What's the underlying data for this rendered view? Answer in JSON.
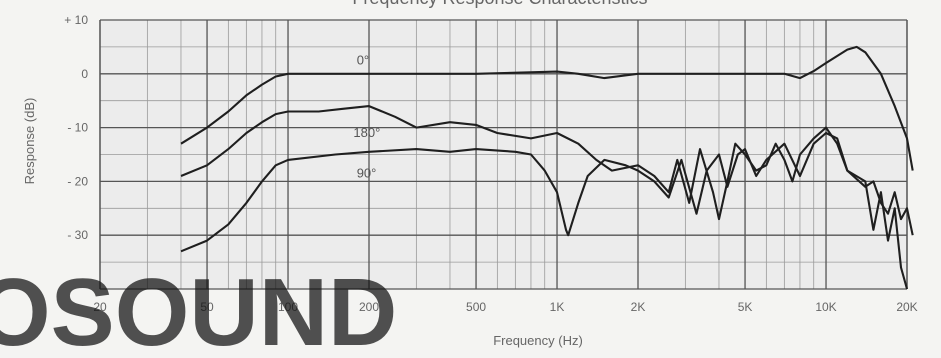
{
  "chart_data": {
    "type": "line",
    "title": "Frequency Response Characteristics",
    "xlabel": "Frequency (Hz)",
    "ylabel": "Response (dB)",
    "x_scale": "log",
    "xlim": [
      20,
      20000
    ],
    "ylim": [
      -40,
      10
    ],
    "grid": true,
    "x_ticks": [
      {
        "value": 20,
        "label": "20"
      },
      {
        "value": 50,
        "label": "50"
      },
      {
        "value": 100,
        "label": "100"
      },
      {
        "value": 200,
        "label": "200"
      },
      {
        "value": 500,
        "label": "500"
      },
      {
        "value": 1000,
        "label": "1K"
      },
      {
        "value": 2000,
        "label": "2K"
      },
      {
        "value": 5000,
        "label": "5K"
      },
      {
        "value": 10000,
        "label": "10K"
      },
      {
        "value": 20000,
        "label": "20K"
      }
    ],
    "y_ticks": [
      {
        "value": 10,
        "label": "+ 10"
      },
      {
        "value": 0,
        "label": "0"
      },
      {
        "value": -10,
        "label": "- 10"
      },
      {
        "value": -20,
        "label": "- 20"
      },
      {
        "value": -30,
        "label": "- 30"
      }
    ],
    "series": [
      {
        "name": "0°",
        "points": [
          [
            40,
            -13
          ],
          [
            50,
            -10
          ],
          [
            60,
            -7
          ],
          [
            70,
            -4
          ],
          [
            80,
            -2
          ],
          [
            90,
            -0.5
          ],
          [
            100,
            0
          ],
          [
            200,
            0
          ],
          [
            500,
            0
          ],
          [
            1000,
            0.4
          ],
          [
            1200,
            0
          ],
          [
            1500,
            -0.8
          ],
          [
            2000,
            0
          ],
          [
            5000,
            0
          ],
          [
            7000,
            0
          ],
          [
            8000,
            -0.8
          ],
          [
            9000,
            0.5
          ],
          [
            10000,
            2
          ],
          [
            12000,
            4.5
          ],
          [
            13000,
            5
          ],
          [
            14000,
            4
          ],
          [
            16000,
            0
          ],
          [
            18000,
            -6
          ],
          [
            20000,
            -12
          ],
          [
            21000,
            -18
          ]
        ],
        "label_at": [
          180,
          2.5
        ]
      },
      {
        "name": "180°",
        "points": [
          [
            40,
            -19
          ],
          [
            50,
            -17
          ],
          [
            60,
            -14
          ],
          [
            70,
            -11
          ],
          [
            80,
            -9
          ],
          [
            90,
            -7.5
          ],
          [
            100,
            -7
          ],
          [
            130,
            -7
          ],
          [
            160,
            -6.5
          ],
          [
            200,
            -6
          ],
          [
            250,
            -8
          ],
          [
            300,
            -10
          ],
          [
            400,
            -9
          ],
          [
            500,
            -9.5
          ],
          [
            600,
            -11
          ],
          [
            800,
            -12
          ],
          [
            1000,
            -11
          ],
          [
            1200,
            -13
          ],
          [
            1400,
            -16
          ],
          [
            1600,
            -18
          ],
          [
            2000,
            -17
          ],
          [
            2300,
            -19
          ],
          [
            2600,
            -22
          ],
          [
            2800,
            -16
          ],
          [
            3100,
            -24
          ],
          [
            3400,
            -14
          ],
          [
            3800,
            -22
          ],
          [
            4000,
            -27
          ],
          [
            4300,
            -20
          ],
          [
            4600,
            -13
          ],
          [
            5000,
            -15
          ],
          [
            5500,
            -18
          ],
          [
            6000,
            -17
          ],
          [
            6500,
            -13
          ],
          [
            7000,
            -16
          ],
          [
            7500,
            -20
          ],
          [
            8000,
            -15
          ],
          [
            9000,
            -12
          ],
          [
            10000,
            -10
          ],
          [
            11000,
            -13
          ],
          [
            12000,
            -18
          ],
          [
            14000,
            -21
          ],
          [
            15000,
            -20
          ],
          [
            16000,
            -24
          ],
          [
            17000,
            -26
          ],
          [
            18000,
            -22
          ],
          [
            19000,
            -27
          ],
          [
            20000,
            -25
          ],
          [
            21000,
            -30
          ]
        ],
        "label_at": [
          175,
          -11
        ]
      },
      {
        "name": "90°",
        "points": [
          [
            40,
            -33
          ],
          [
            50,
            -31
          ],
          [
            60,
            -28
          ],
          [
            70,
            -24
          ],
          [
            80,
            -20
          ],
          [
            90,
            -17
          ],
          [
            100,
            -16
          ],
          [
            150,
            -15
          ],
          [
            200,
            -14.5
          ],
          [
            300,
            -14
          ],
          [
            400,
            -14.5
          ],
          [
            500,
            -14
          ],
          [
            700,
            -14.5
          ],
          [
            800,
            -15
          ],
          [
            900,
            -18
          ],
          [
            1000,
            -22
          ],
          [
            1080,
            -29
          ],
          [
            1100,
            -30
          ],
          [
            1200,
            -24
          ],
          [
            1300,
            -19
          ],
          [
            1500,
            -16
          ],
          [
            1800,
            -17
          ],
          [
            2000,
            -18
          ],
          [
            2300,
            -20
          ],
          [
            2600,
            -23
          ],
          [
            2900,
            -16
          ],
          [
            3300,
            -26
          ],
          [
            3600,
            -18
          ],
          [
            4000,
            -15
          ],
          [
            4300,
            -21
          ],
          [
            4700,
            -15
          ],
          [
            5000,
            -14
          ],
          [
            5500,
            -19
          ],
          [
            6000,
            -16
          ],
          [
            7000,
            -13
          ],
          [
            8000,
            -19
          ],
          [
            9000,
            -13
          ],
          [
            10000,
            -11
          ],
          [
            11000,
            -12
          ],
          [
            12000,
            -18
          ],
          [
            14000,
            -20
          ],
          [
            15000,
            -29
          ],
          [
            16000,
            -22
          ],
          [
            17000,
            -31
          ],
          [
            18000,
            -25
          ],
          [
            19000,
            -36
          ],
          [
            20000,
            -40
          ]
        ],
        "label_at": [
          180,
          -18.5
        ]
      }
    ]
  },
  "watermark": "OSOUND"
}
